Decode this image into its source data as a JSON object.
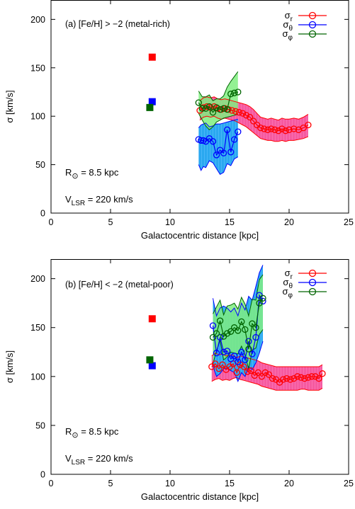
{
  "chart_data": [
    {
      "type": "line",
      "panel_label": "(a)  [Fe/H] > −2  (metal-rich)",
      "xlabel": "Galactocentric distance [kpc]",
      "ylabel": "σ [km/s]",
      "xlim": [
        0,
        25
      ],
      "ylim": [
        0,
        220
      ],
      "xticks": [
        "0",
        "5",
        "10",
        "15",
        "20",
        "25"
      ],
      "yticks": [
        "0",
        "50",
        "100",
        "150",
        "200"
      ],
      "annotations": [
        "R⊙ = 8.5 kpc",
        "VLSR = 220 km/s"
      ],
      "legend_position": "top-right",
      "series": [
        {
          "name": "σr",
          "color": "#ff0000",
          "fill": "#f55aa0",
          "x": [
            12.5,
            12.8,
            13.1,
            13.4,
            13.7,
            14.0,
            14.3,
            14.6,
            14.9,
            15.2,
            15.5,
            15.8,
            16.1,
            16.4,
            16.7,
            17.0,
            17.3,
            17.6,
            17.9,
            18.2,
            18.5,
            18.8,
            19.1,
            19.4,
            19.7,
            20.0,
            20.4,
            20.8,
            21.2,
            21.6
          ],
          "values": [
            106,
            109,
            110,
            109,
            110,
            108,
            107,
            108,
            107,
            106,
            105,
            104,
            103,
            101,
            99,
            95,
            91,
            88,
            87,
            86,
            87,
            86,
            85,
            87,
            85,
            86,
            87,
            86,
            88,
            91
          ],
          "lower": [
            96,
            99,
            100,
            99,
            100,
            98,
            97,
            98,
            97,
            96,
            95,
            93,
            91,
            89,
            86,
            83,
            80,
            77,
            76,
            75,
            75,
            74,
            74,
            75,
            74,
            75,
            75,
            76,
            77,
            79
          ],
          "upper": [
            116,
            119,
            120,
            119,
            120,
            118,
            117,
            118,
            117,
            116,
            115,
            114,
            113,
            112,
            110,
            107,
            103,
            99,
            98,
            97,
            98,
            97,
            96,
            98,
            97,
            97,
            98,
            97,
            99,
            102
          ]
        },
        {
          "name": "σθ",
          "color": "#0000ff",
          "fill": "#2aa0f0",
          "x": [
            12.4,
            12.6,
            12.8,
            13.0,
            13.3,
            13.6,
            13.9,
            14.2,
            14.5,
            14.8,
            15.1,
            15.4,
            15.7
          ],
          "values": [
            76,
            75,
            75,
            74,
            77,
            74,
            60,
            65,
            62,
            86,
            63,
            76,
            84
          ],
          "lower": [
            50,
            44,
            48,
            47,
            54,
            52,
            46,
            40,
            42,
            51,
            49,
            56,
            58
          ],
          "upper": [
            88,
            91,
            92,
            93,
            89,
            90,
            92,
            92,
            93,
            94,
            95,
            96,
            97
          ]
        },
        {
          "name": "σφ",
          "color": "#006400",
          "fill": "#80ee80",
          "x": [
            12.4,
            12.7,
            13.0,
            13.3,
            13.6,
            13.9,
            14.2,
            14.5,
            14.8,
            15.1,
            15.4,
            15.7
          ],
          "values": [
            114,
            108,
            108,
            110,
            104,
            109,
            107,
            108,
            107,
            123,
            124,
            125
          ],
          "lower": [
            103,
            96,
            90,
            86,
            89,
            94,
            96,
            98,
            99,
            100,
            101,
            102
          ],
          "upper": [
            126,
            120,
            120,
            122,
            116,
            118,
            118,
            121,
            130,
            136,
            141,
            146
          ]
        }
      ],
      "reference_points": [
        {
          "name": "σr",
          "x": 8.5,
          "y": 161,
          "color": "#ff0000"
        },
        {
          "name": "σθ",
          "x": 8.5,
          "y": 115,
          "color": "#0000ff"
        },
        {
          "name": "σφ",
          "x": 8.3,
          "y": 109,
          "color": "#006400"
        }
      ]
    },
    {
      "type": "line",
      "panel_label": "(b)  [Fe/H] < −2  (metal-poor)",
      "xlabel": "Galactocentric distance [kpc]",
      "ylabel": "σ [km/s]",
      "xlim": [
        0,
        25
      ],
      "ylim": [
        0,
        220
      ],
      "xticks": [
        "0",
        "5",
        "10",
        "15",
        "20",
        "25"
      ],
      "yticks": [
        "0",
        "50",
        "100",
        "150",
        "200"
      ],
      "annotations": [
        "R⊙ = 8.5 kpc",
        "VLSR = 220 km/s"
      ],
      "legend_position": "top-right",
      "series": [
        {
          "name": "σr",
          "color": "#ff0000",
          "fill": "#f55aa0",
          "x": [
            13.5,
            13.8,
            14.1,
            14.4,
            14.7,
            15.0,
            15.3,
            15.6,
            15.9,
            16.2,
            16.5,
            16.8,
            17.1,
            17.4,
            17.7,
            18.0,
            18.3,
            18.6,
            18.9,
            19.2,
            19.5,
            19.8,
            20.1,
            20.4,
            20.7,
            21.0,
            21.3,
            21.6,
            21.9,
            22.2,
            22.5,
            22.8
          ],
          "values": [
            110,
            113,
            108,
            112,
            107,
            110,
            113,
            104,
            112,
            110,
            105,
            106,
            101,
            104,
            100,
            104,
            102,
            98,
            97,
            94,
            97,
            98,
            97,
            98,
            100,
            99,
            98,
            99,
            100,
            100,
            98,
            103
          ],
          "lower": [
            95,
            97,
            98,
            96,
            97,
            96,
            98,
            99,
            97,
            96,
            95,
            94,
            93,
            92,
            90,
            89,
            88,
            87,
            86,
            86,
            86,
            86,
            86,
            86,
            86,
            87,
            87,
            86,
            86,
            86,
            86,
            88
          ],
          "upper": [
            121,
            124,
            122,
            123,
            121,
            122,
            122,
            119,
            121,
            120,
            119,
            118,
            117,
            116,
            114,
            113,
            112,
            111,
            110,
            110,
            110,
            110,
            110,
            110,
            110,
            110,
            110,
            110,
            110,
            110,
            110,
            112
          ]
        },
        {
          "name": "σθ",
          "color": "#0000ff",
          "fill": "#2aa0f0",
          "x": [
            13.6,
            13.9,
            14.2,
            14.5,
            14.8,
            15.1,
            15.4,
            15.7,
            16.0,
            16.3,
            16.6,
            16.9,
            17.2,
            17.5,
            17.8
          ],
          "values": [
            152,
            124,
            140,
            125,
            126,
            118,
            121,
            115,
            125,
            117,
            136,
            123,
            140,
            183,
            177
          ],
          "lower": [
            111,
            100,
            103,
            108,
            108,
            106,
            104,
            95,
            104,
            100,
            110,
            107,
            114,
            124,
            136
          ],
          "upper": [
            180,
            162,
            170,
            172,
            170,
            166,
            170,
            162,
            175,
            168,
            182,
            178,
            192,
            206,
            214
          ]
        },
        {
          "name": "σφ",
          "color": "#006400",
          "fill": "#80ee80",
          "x": [
            13.6,
            13.9,
            14.2,
            14.5,
            14.8,
            15.1,
            15.4,
            15.7,
            16.0,
            16.3,
            16.6,
            16.9,
            17.2,
            17.5,
            17.8
          ],
          "values": [
            140,
            144,
            157,
            141,
            144,
            146,
            150,
            147,
            156,
            148,
            128,
            154,
            150,
            175,
            180
          ],
          "lower": [
            113,
            126,
            137,
            117,
            120,
            125,
            124,
            123,
            131,
            122,
            108,
            127,
            129,
            143,
            148
          ],
          "upper": [
            164,
            171,
            178,
            163,
            172,
            173,
            175,
            169,
            181,
            174,
            162,
            179,
            178,
            199,
            204
          ]
        }
      ],
      "reference_points": [
        {
          "name": "σr",
          "x": 8.5,
          "y": 159,
          "color": "#ff0000"
        },
        {
          "name": "σθ",
          "x": 8.5,
          "y": 111,
          "color": "#0000ff"
        },
        {
          "name": "σφ",
          "x": 8.3,
          "y": 117,
          "color": "#006400"
        }
      ]
    }
  ]
}
